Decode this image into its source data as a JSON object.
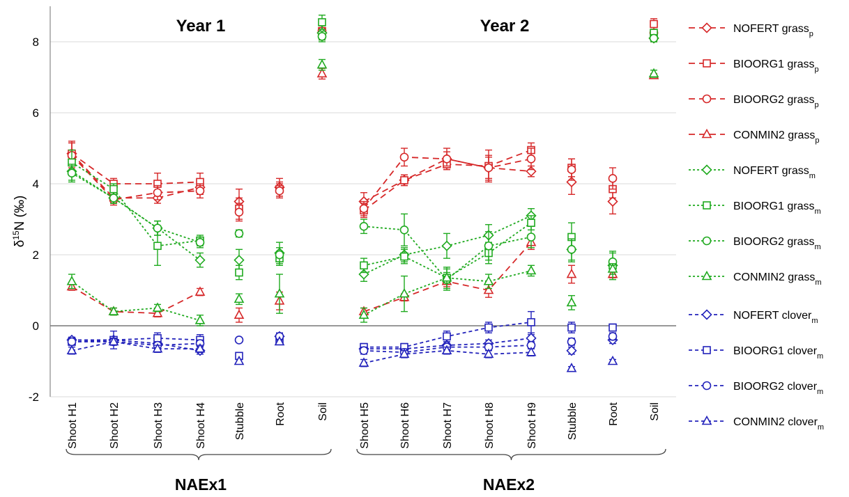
{
  "chart_data": {
    "type": "line",
    "ylabel_symbol": "δ",
    "ylabel_sup": "15",
    "ylabel_rest": "N (‰)",
    "ylim": [
      -2,
      9
    ],
    "yticks": [
      "-2",
      "0",
      "2",
      "4",
      "6",
      "8"
    ],
    "ytick_values": [
      -2,
      0,
      2,
      4,
      6,
      8
    ],
    "grid": true,
    "categories": [
      "Shoot H1",
      "Shoot H2",
      "Shoot H3",
      "Shoot H4",
      "Stubble",
      "Root",
      "Soil",
      "Shoot H5",
      "Shoot H6",
      "Shoot H7",
      "Shoot H8",
      "Shoot H9",
      "Stubble",
      "Root",
      "Soil"
    ],
    "panel_titles": [
      "Year 1",
      "Year 2"
    ],
    "group_labels": [
      "NAEx1",
      "NAEx2"
    ],
    "legend_position": "right",
    "colors": {
      "red": "#d62728",
      "green": "#1faa1f",
      "blue": "#2222bb",
      "zero_line": "#777777",
      "grid": "#d9d9d9"
    },
    "series": [
      {
        "name": "NOFERT grass",
        "sub": "p",
        "color": "red",
        "dash": "long",
        "marker": "diamond",
        "values": [
          4.85,
          3.6,
          3.6,
          3.9,
          3.5,
          3.9,
          8.25,
          3.5,
          4.1,
          4.7,
          4.45,
          4.35,
          4.05,
          3.5,
          8.1
        ],
        "err": [
          0.3,
          0.15,
          0.15,
          0.2,
          0.35,
          0.25,
          0.2,
          0.25,
          0.15,
          0.3,
          0.35,
          0.15,
          0.35,
          0.35,
          0.1
        ]
      },
      {
        "name": "BIOORG1 grass",
        "sub": "p",
        "color": "red",
        "dash": "long",
        "marker": "square",
        "values": [
          4.85,
          4.0,
          4.0,
          4.05,
          3.3,
          3.85,
          8.3,
          3.25,
          4.1,
          4.55,
          4.5,
          4.95,
          4.45,
          3.85,
          8.5
        ],
        "err": [
          0.35,
          0.15,
          0.3,
          0.25,
          0.3,
          0.2,
          0.2,
          0.2,
          0.15,
          0.15,
          0.45,
          0.2,
          0.25,
          0.25,
          0.15
        ]
      },
      {
        "name": "BIOORG2 grass",
        "sub": "p",
        "color": "red",
        "dash": "long",
        "marker": "circle",
        "values": [
          4.8,
          3.55,
          3.75,
          3.8,
          3.2,
          3.8,
          8.3,
          3.3,
          4.75,
          4.7,
          4.45,
          4.7,
          4.4,
          4.15,
          8.25
        ],
        "err": [
          0.35,
          0.15,
          0.2,
          0.2,
          0.25,
          0.2,
          0.2,
          0.2,
          0.25,
          0.2,
          0.3,
          0.3,
          0.3,
          0.3,
          0.1
        ]
      },
      {
        "name": "CONMIN2 grass",
        "sub": "p",
        "color": "red",
        "dash": "long",
        "marker": "triangle",
        "values": [
          1.1,
          0.4,
          0.35,
          0.95,
          0.3,
          0.7,
          7.1,
          0.4,
          0.8,
          1.25,
          1.0,
          2.35,
          1.45,
          1.45,
          7.05
        ],
        "err": [
          0.1,
          0.1,
          0.1,
          0.1,
          0.2,
          0.25,
          0.15,
          0.1,
          0.1,
          0.15,
          0.2,
          0.2,
          0.25,
          0.1,
          0.05
        ]
      },
      {
        "name": "NOFERT grass",
        "sub": "m",
        "color": "green",
        "dash": "dot",
        "marker": "diamond",
        "values": [
          4.35,
          3.6,
          2.75,
          1.85,
          1.85,
          2.05,
          8.25,
          1.45,
          2.0,
          2.25,
          2.55,
          3.1,
          2.15,
          1.7,
          8.1
        ],
        "err": [
          0.25,
          0.15,
          0.2,
          0.2,
          0.3,
          0.3,
          0.2,
          0.2,
          0.2,
          0.35,
          0.3,
          0.2,
          0.35,
          0.4,
          0.1
        ]
      },
      {
        "name": "BIOORG1 grass",
        "sub": "m",
        "color": "green",
        "dash": "dot",
        "marker": "square",
        "values": [
          4.6,
          3.85,
          2.25,
          2.4,
          1.5,
          1.9,
          8.55,
          1.7,
          1.95,
          1.35,
          2.05,
          2.9,
          2.5,
          1.7,
          8.25
        ],
        "err": [
          0.35,
          0.15,
          0.55,
          0.15,
          0.2,
          0.2,
          0.2,
          0.2,
          0.2,
          0.3,
          0.3,
          0.2,
          0.4,
          0.15,
          0.1
        ]
      },
      {
        "name": "BIOORG2 grass",
        "sub": "m",
        "color": "green",
        "dash": "dot",
        "marker": "circle",
        "values": [
          4.3,
          3.6,
          2.75,
          2.35,
          2.6,
          2.0,
          8.15,
          2.8,
          2.7,
          1.3,
          2.25,
          2.5,
          2.15,
          1.8,
          8.1
        ],
        "err": [
          0.25,
          0.15,
          0.2,
          0.15,
          0.1,
          0.2,
          0.15,
          0.2,
          0.45,
          0.3,
          0.4,
          0.3,
          0.3,
          0.25,
          0.1
        ]
      },
      {
        "name": "CONMIN2 grass",
        "sub": "m",
        "color": "green",
        "dash": "dot",
        "marker": "triangle",
        "values": [
          1.25,
          0.4,
          0.5,
          0.15,
          0.75,
          0.9,
          7.35,
          0.3,
          0.9,
          1.35,
          1.25,
          1.55,
          0.65,
          1.6,
          7.1
        ],
        "err": [
          0.2,
          0.1,
          0.1,
          0.15,
          0.15,
          0.55,
          0.15,
          0.2,
          0.5,
          0.15,
          0.2,
          0.15,
          0.2,
          0.15,
          0.1
        ]
      },
      {
        "name": "NOFERT clover",
        "sub": "m",
        "color": "blue",
        "dash": "short",
        "marker": "diamond",
        "values": [
          -0.4,
          -0.4,
          -0.5,
          -0.7,
          null,
          -0.3,
          null,
          -0.65,
          -0.65,
          -0.55,
          -0.5,
          -0.35,
          -0.7,
          -0.4,
          null
        ],
        "err": [
          0.08,
          0.08,
          0.1,
          0.1,
          null,
          0.1,
          null,
          0.1,
          0.1,
          0.1,
          0.1,
          0.1,
          0.1,
          0.1,
          null
        ]
      },
      {
        "name": "BIOORG1 clover",
        "sub": "m",
        "color": "blue",
        "dash": "short",
        "marker": "square",
        "values": [
          -0.45,
          -0.4,
          -0.35,
          -0.4,
          -0.85,
          -0.4,
          null,
          -0.6,
          -0.6,
          -0.3,
          -0.05,
          0.1,
          -0.05,
          -0.05,
          null
        ],
        "err": [
          0.1,
          0.25,
          0.15,
          0.15,
          0.1,
          0.1,
          null,
          0.1,
          0.1,
          0.15,
          0.15,
          0.3,
          0.15,
          0.1,
          null
        ]
      },
      {
        "name": "BIOORG2 clover",
        "sub": "m",
        "color": "blue",
        "dash": "short",
        "marker": "circle",
        "values": [
          -0.45,
          -0.45,
          -0.55,
          -0.5,
          -0.4,
          -0.3,
          null,
          -0.7,
          -0.75,
          -0.6,
          -0.6,
          -0.55,
          -0.45,
          -0.3,
          null
        ],
        "err": [
          0.08,
          0.08,
          0.1,
          0.1,
          0.05,
          0.1,
          null,
          0.1,
          0.1,
          0.1,
          0.1,
          0.1,
          0.1,
          0.1,
          null
        ]
      },
      {
        "name": "CONMIN2 clover",
        "sub": "m",
        "color": "blue",
        "dash": "short",
        "marker": "triangle",
        "values": [
          -0.7,
          -0.45,
          -0.65,
          -0.65,
          -1.0,
          -0.45,
          null,
          -1.05,
          -0.8,
          -0.7,
          -0.8,
          -0.75,
          -1.2,
          -1.0,
          null
        ],
        "err": [
          0.1,
          0.1,
          0.1,
          0.1,
          0.05,
          0.05,
          null,
          0.1,
          0.1,
          0.1,
          0.1,
          0.1,
          0.05,
          0.05,
          null
        ]
      }
    ]
  }
}
